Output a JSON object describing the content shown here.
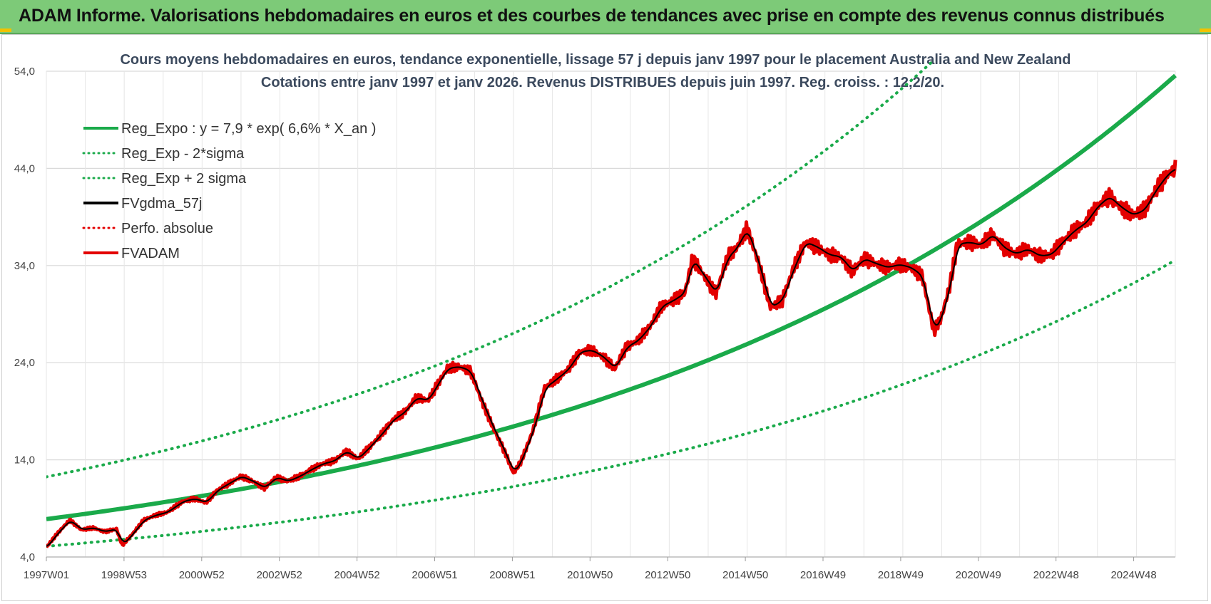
{
  "header": {
    "title": "ADAM Informe. Valorisations hebdomadaires en euros et des courbes de tendances avec prise en compte des revenus connus distribués"
  },
  "colors": {
    "header_bg": "#7dca78",
    "trend": "#1aaa4a",
    "series": "#e30000",
    "smooth": "#000000",
    "grid": "#d9d9d9"
  },
  "chart_data": {
    "type": "line",
    "title": "Cours moyens hebdomadaires en euros, tendance exponentielle, lissage 57 j depuis janv 1997  pour le  placement Australia and New Zealand",
    "subtitle": "Cotations entre janv 1997 et janv 2026. Revenus DISTRIBUES depuis juin 1997. Reg. croiss. : 12,2/20.",
    "xlabel": "",
    "ylabel": "",
    "ylim": [
      4,
      54
    ],
    "yticks": [
      "4,0",
      "14,0",
      "24,0",
      "34,0",
      "44,0",
      "54,0"
    ],
    "xlim": [
      1997.0,
      2026.0
    ],
    "xticks": [
      "1997W01",
      "1998W53",
      "2000W52",
      "2002W52",
      "2004W52",
      "2006W51",
      "2008W51",
      "2010W50",
      "2012W50",
      "2014W50",
      "2016W49",
      "2018W49",
      "2020W49",
      "2022W48",
      "2024W48"
    ],
    "grid": true,
    "legend_position": "top-left",
    "legend": [
      {
        "label": "Reg_Expo : y = 7,9 * exp( 6,6% *  X_an )",
        "style": "solid",
        "color": "#1aaa4a"
      },
      {
        "label": "Reg_Exp - 2*sigma",
        "style": "dotted",
        "color": "#1aaa4a"
      },
      {
        "label": "Reg_Exp + 2 sigma",
        "style": "dotted",
        "color": "#1aaa4a"
      },
      {
        "label": "FVgdma_57j",
        "style": "solid",
        "color": "#000000"
      },
      {
        "label": "Perfo. absolue",
        "style": "dotted",
        "color": "#e30000"
      },
      {
        "label": "FVADAM",
        "style": "solid",
        "color": "#e30000"
      }
    ],
    "trend": {
      "a": 7.9,
      "b": 0.066,
      "x0": 1997.0,
      "sigma_factor": 1.55
    },
    "series": [
      {
        "name": "FVADAM",
        "x": [
          1997.0,
          1997.3,
          1997.6,
          1997.9,
          1998.2,
          1998.5,
          1998.8,
          1998.95,
          1999.2,
          1999.5,
          1999.8,
          2000.1,
          2000.5,
          2000.8,
          2001.1,
          2001.4,
          2001.7,
          2002.0,
          2002.3,
          2002.6,
          2002.9,
          2003.2,
          2003.5,
          2003.8,
          2004.1,
          2004.4,
          2004.7,
          2005.0,
          2005.3,
          2005.6,
          2005.9,
          2006.2,
          2006.5,
          2006.8,
          2007.1,
          2007.3,
          2007.6,
          2007.9,
          2008.2,
          2008.5,
          2008.8,
          2009.0,
          2009.2,
          2009.5,
          2009.8,
          2010.1,
          2010.4,
          2010.7,
          2011.0,
          2011.3,
          2011.6,
          2011.9,
          2012.2,
          2012.5,
          2012.8,
          2013.1,
          2013.4,
          2013.6,
          2013.9,
          2014.2,
          2014.5,
          2014.7,
          2015.0,
          2015.3,
          2015.6,
          2015.9,
          2016.2,
          2016.5,
          2016.8,
          2017.1,
          2017.4,
          2017.7,
          2018.0,
          2018.3,
          2018.6,
          2018.9,
          2019.2,
          2019.5,
          2019.8,
          2020.0,
          2020.2,
          2020.4,
          2020.7,
          2021.0,
          2021.3,
          2021.6,
          2021.9,
          2022.2,
          2022.5,
          2022.8,
          2023.1,
          2023.4,
          2023.7,
          2024.0,
          2024.3,
          2024.6,
          2024.9,
          2025.2,
          2025.5,
          2025.8,
          2026.0
        ],
        "values": [
          5.0,
          6.5,
          7.8,
          6.8,
          7.0,
          6.6,
          6.9,
          5.2,
          6.3,
          7.8,
          8.3,
          8.6,
          9.7,
          10.0,
          9.6,
          10.9,
          11.6,
          12.3,
          11.8,
          11.1,
          12.2,
          11.8,
          12.3,
          13.0,
          13.6,
          13.9,
          14.9,
          14.1,
          15.3,
          16.6,
          18.1,
          18.9,
          20.4,
          20.1,
          22.1,
          23.4,
          23.6,
          23.1,
          19.9,
          17.1,
          14.6,
          12.6,
          13.9,
          17.0,
          21.4,
          22.3,
          23.3,
          25.1,
          25.3,
          24.6,
          23.4,
          25.6,
          26.3,
          27.7,
          29.8,
          30.4,
          31.2,
          34.7,
          32.9,
          31.1,
          34.9,
          35.6,
          37.8,
          34.2,
          29.7,
          30.4,
          33.8,
          36.4,
          35.9,
          35.1,
          34.9,
          33.4,
          34.7,
          34.2,
          33.8,
          34.1,
          33.8,
          32.9,
          27.2,
          28.8,
          31.8,
          36.2,
          36.4,
          36.1,
          37.2,
          35.8,
          35.2,
          35.7,
          35.0,
          35.1,
          36.4,
          37.6,
          38.4,
          40.1,
          41.1,
          40.0,
          39.2,
          39.7,
          41.8,
          43.4,
          44.0
        ]
      }
    ]
  }
}
